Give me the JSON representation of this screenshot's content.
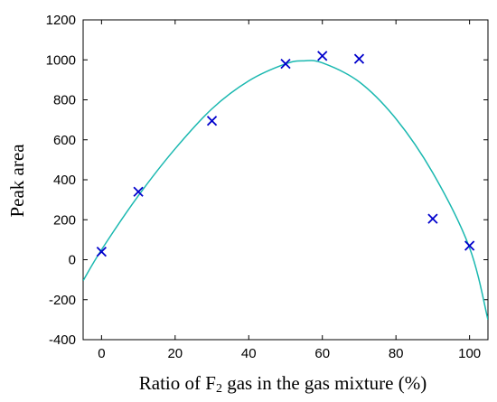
{
  "chart_data": {
    "type": "scatter",
    "xlabel": {
      "prefix": "Ratio of F",
      "subscript": "2",
      "suffix": " gas in the gas mixture (%)"
    },
    "ylabel": "Peak area",
    "xlim": [
      -5,
      105
    ],
    "ylim": [
      -400,
      1200
    ],
    "xticks": [
      0,
      20,
      40,
      60,
      80,
      100
    ],
    "yticks": [
      -400,
      -200,
      0,
      200,
      400,
      600,
      800,
      1000,
      1200
    ],
    "grid": false,
    "series": [
      {
        "kind": "points",
        "marker": "x",
        "color": "#0000cc",
        "x": [
          0,
          10,
          30,
          50,
          60,
          70,
          90,
          100
        ],
        "y": [
          40,
          340,
          695,
          980,
          1020,
          1005,
          205,
          70
        ]
      },
      {
        "kind": "fit_curve",
        "color": "#1ab8b0",
        "x": [
          -5,
          0,
          10,
          20,
          30,
          40,
          50,
          55,
          60,
          70,
          80,
          90,
          100,
          105
        ],
        "y": [
          -105,
          50,
          320,
          555,
          755,
          895,
          980,
          995,
          985,
          890,
          705,
          435,
          60,
          -300
        ]
      }
    ]
  }
}
